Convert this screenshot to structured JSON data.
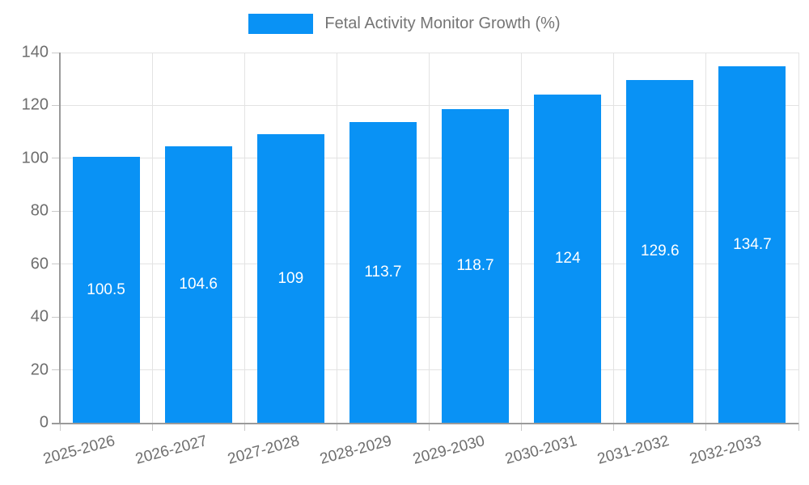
{
  "chart_data": {
    "type": "bar",
    "title": "Fetal Activity Monitor Growth (%)",
    "categories": [
      "2025-2026",
      "2026-2027",
      "2027-2028",
      "2028-2029",
      "2029-2030",
      "2030-2031",
      "2031-2032",
      "2032-2033"
    ],
    "values": [
      100.5,
      104.6,
      109,
      113.7,
      118.7,
      124,
      129.6,
      134.7
    ],
    "value_labels": [
      "100.5",
      "104.6",
      "109",
      "113.7",
      "118.7",
      "124",
      "129.6",
      "134.7"
    ],
    "xlabel": "",
    "ylabel": "",
    "ylim": [
      0,
      140
    ],
    "ytick_step": 20,
    "ytick_labels": [
      "0",
      "20",
      "40",
      "60",
      "80",
      "100",
      "120",
      "140"
    ],
    "grid": true,
    "legend_position": "top",
    "legend_entries": [
      "Fetal Activity Monitor Growth (%)"
    ],
    "colors": {
      "bar": "#0992f5",
      "grid": "#e3e3e3",
      "axis": "#9a9a9a",
      "tick_text": "#6e6e6e",
      "legend_text": "#757575",
      "bar_label_text": "#ffffff",
      "background": "#ffffff"
    }
  }
}
